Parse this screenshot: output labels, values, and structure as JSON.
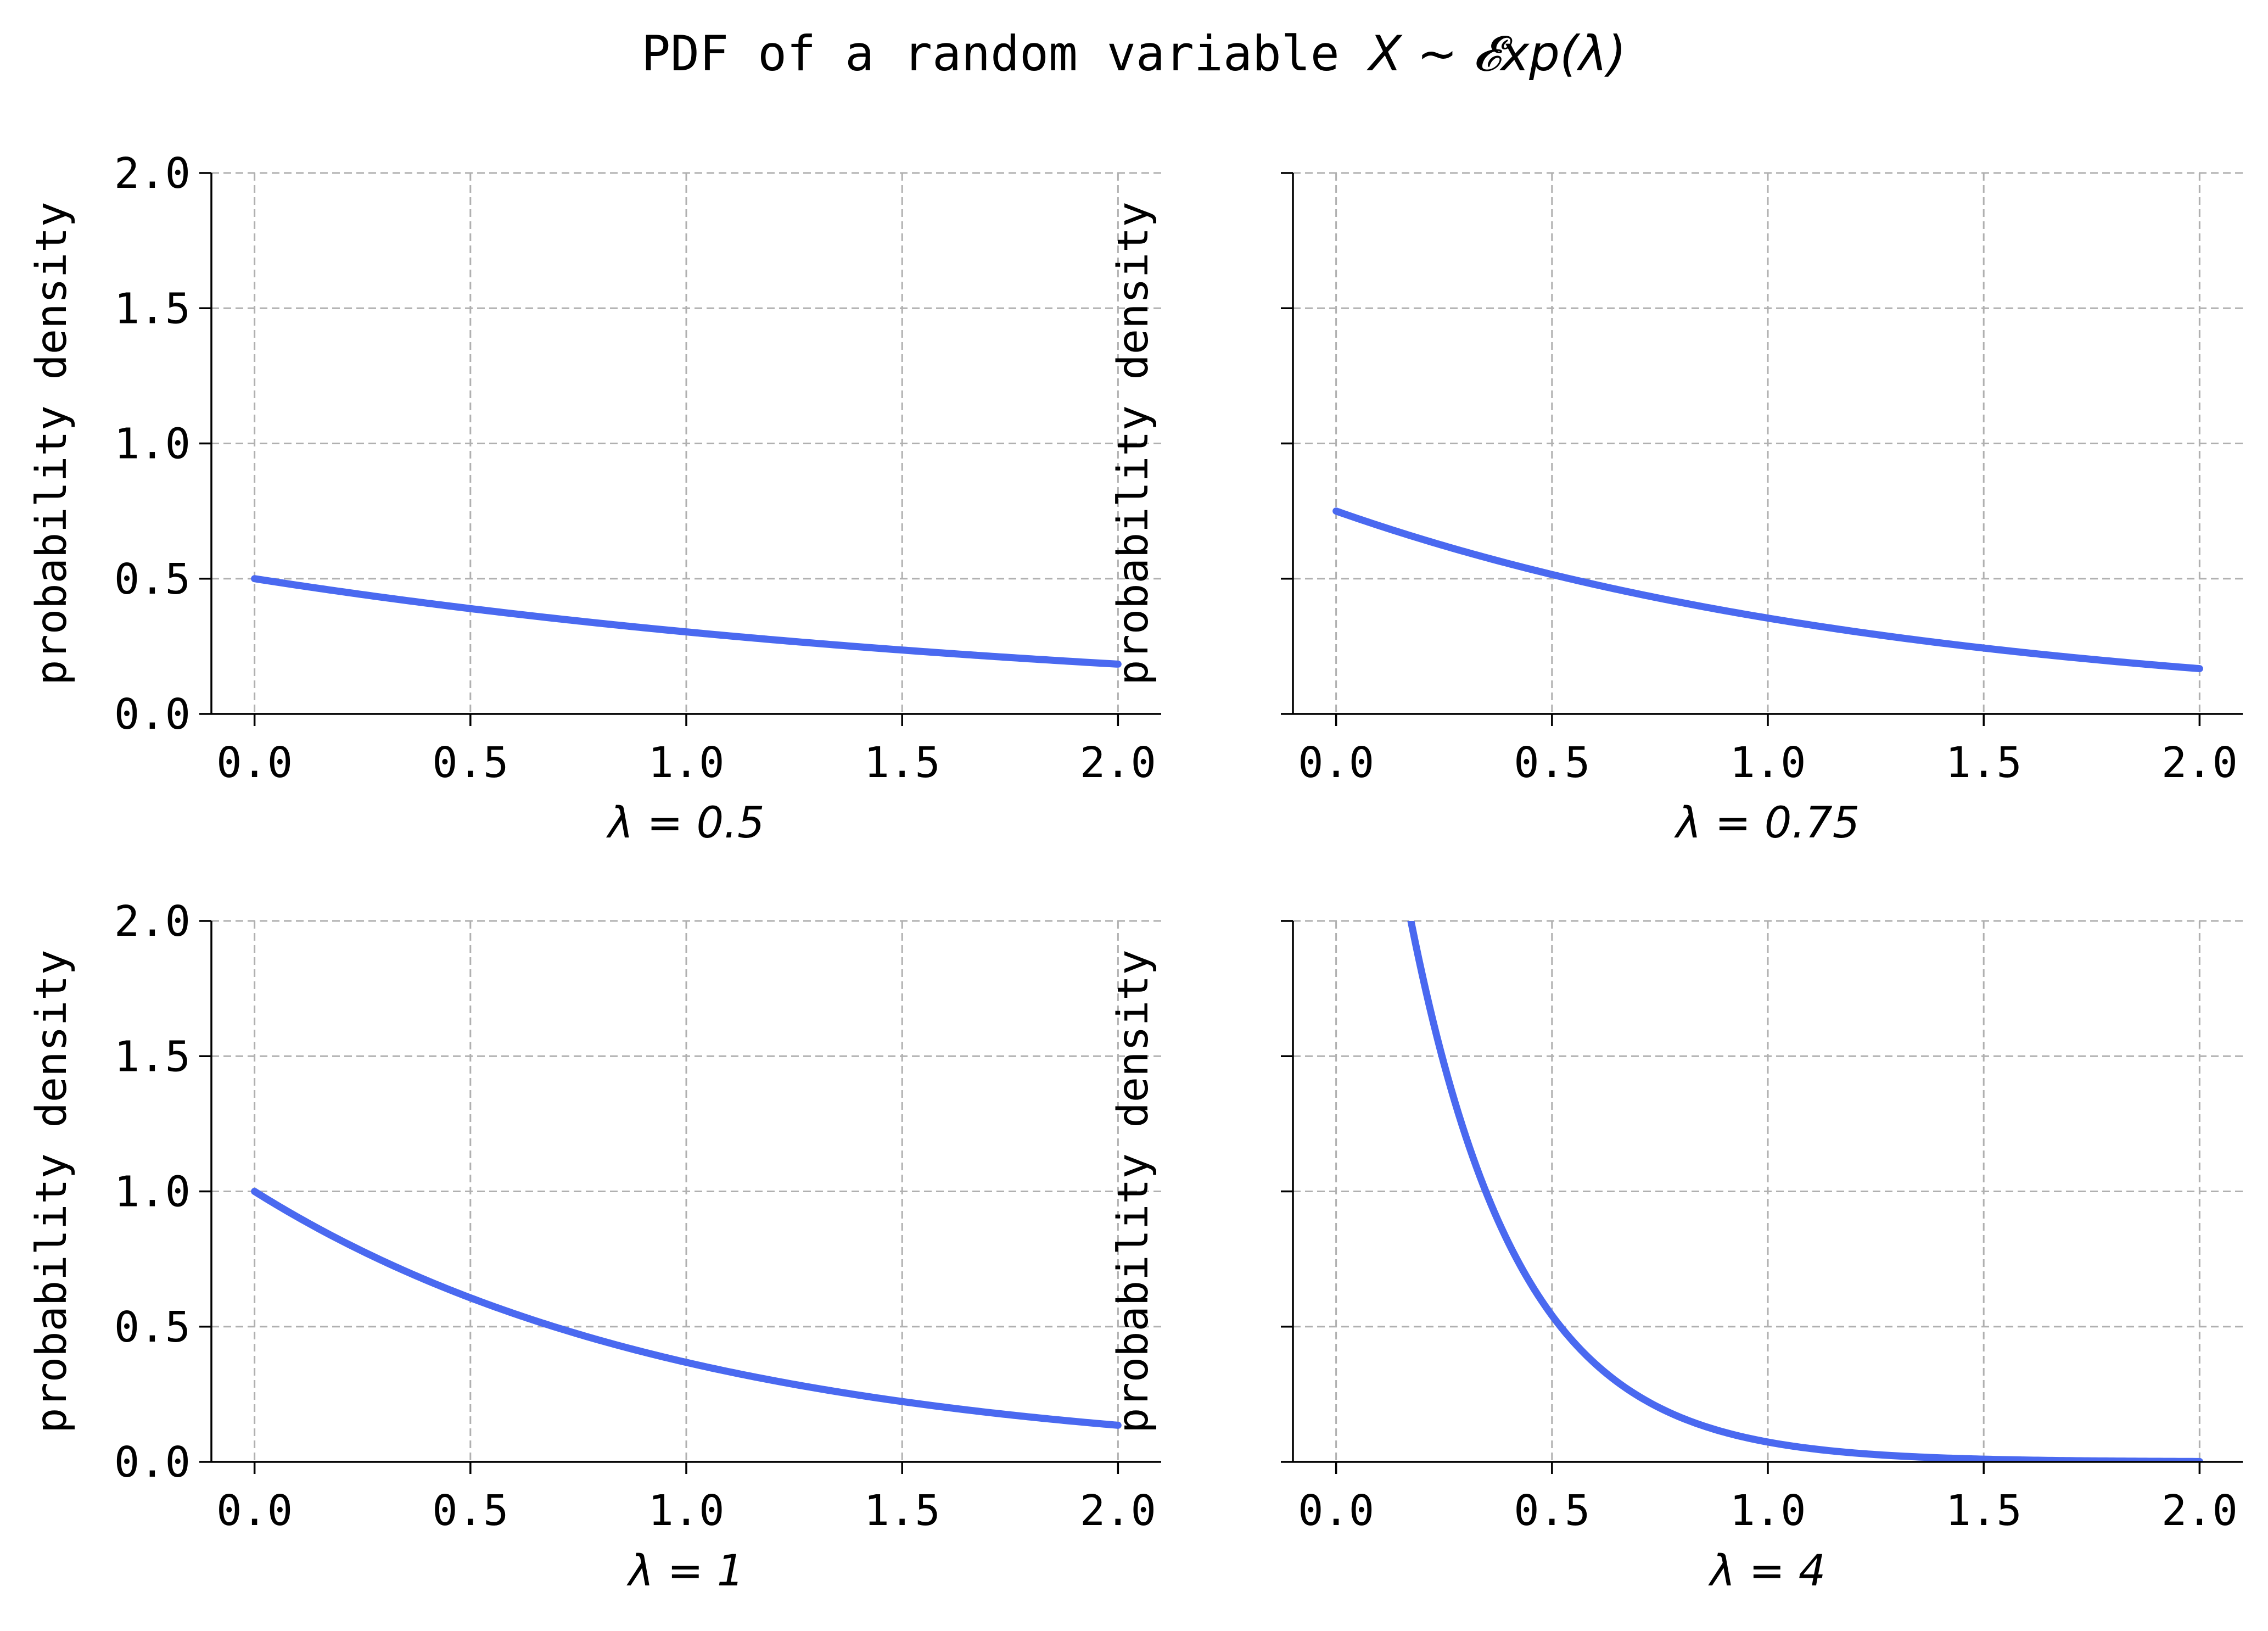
{
  "figure": {
    "title_text": "PDF of a random variable ",
    "title_math": "X ~ 𝓔xp(λ)"
  },
  "colors": {
    "line": "#4a69f0",
    "grid": "#b0b0b0",
    "axis": "#000000"
  },
  "chart_data": [
    {
      "type": "line",
      "title": "",
      "xlabel": "λ = 0.5",
      "ylabel": "probability density",
      "lambda": 0.5,
      "xlim": [
        -0.1,
        2.1
      ],
      "ylim": [
        0.0,
        2.0
      ],
      "xticks": [
        "0.0",
        "0.5",
        "1.0",
        "1.5",
        "2.0"
      ],
      "yticks": [
        "0.0",
        "0.5",
        "1.0",
        "1.5",
        "2.0"
      ],
      "show_yticklabels": true,
      "grid": true,
      "series": [
        {
          "x": [
            0.0,
            0.25,
            0.5,
            0.75,
            1.0,
            1.25,
            1.5,
            1.75,
            2.0
          ],
          "y": [
            0.5,
            0.441,
            0.389,
            0.344,
            0.303,
            0.268,
            0.236,
            0.208,
            0.184
          ]
        }
      ]
    },
    {
      "type": "line",
      "title": "",
      "xlabel": "λ = 0.75",
      "ylabel": "probability density",
      "lambda": 0.75,
      "xlim": [
        -0.1,
        2.1
      ],
      "ylim": [
        0.0,
        2.0
      ],
      "xticks": [
        "0.0",
        "0.5",
        "1.0",
        "1.5",
        "2.0"
      ],
      "yticks": [
        "0.0",
        "0.5",
        "1.0",
        "1.5",
        "2.0"
      ],
      "show_yticklabels": false,
      "grid": true,
      "series": [
        {
          "x": [
            0.0,
            0.25,
            0.5,
            0.75,
            1.0,
            1.25,
            1.5,
            1.75,
            2.0
          ],
          "y": [
            0.75,
            0.622,
            0.516,
            0.427,
            0.354,
            0.294,
            0.244,
            0.202,
            0.167
          ]
        }
      ]
    },
    {
      "type": "line",
      "title": "",
      "xlabel": "λ = 1",
      "ylabel": "probability density",
      "lambda": 1,
      "xlim": [
        -0.1,
        2.1
      ],
      "ylim": [
        0.0,
        2.0
      ],
      "xticks": [
        "0.0",
        "0.5",
        "1.0",
        "1.5",
        "2.0"
      ],
      "yticks": [
        "0.0",
        "0.5",
        "1.0",
        "1.5",
        "2.0"
      ],
      "show_yticklabels": true,
      "grid": true,
      "series": [
        {
          "x": [
            0.0,
            0.25,
            0.5,
            0.75,
            1.0,
            1.25,
            1.5,
            1.75,
            2.0
          ],
          "y": [
            1.0,
            0.779,
            0.607,
            0.472,
            0.368,
            0.287,
            0.223,
            0.174,
            0.135
          ]
        }
      ]
    },
    {
      "type": "line",
      "title": "",
      "xlabel": "λ = 4",
      "ylabel": "probability density",
      "lambda": 4,
      "xlim": [
        -0.1,
        2.1
      ],
      "ylim": [
        0.0,
        2.0
      ],
      "xticks": [
        "0.0",
        "0.5",
        "1.0",
        "1.5",
        "2.0"
      ],
      "yticks": [
        "0.0",
        "0.5",
        "1.0",
        "1.5",
        "2.0"
      ],
      "show_yticklabels": false,
      "grid": true,
      "series": [
        {
          "x": [
            0.17,
            0.25,
            0.5,
            0.75,
            1.0,
            1.25,
            1.5,
            1.75,
            2.0
          ],
          "y": [
            2.0,
            1.472,
            0.541,
            0.199,
            0.073,
            0.027,
            0.01,
            0.004,
            0.001
          ]
        }
      ]
    }
  ]
}
